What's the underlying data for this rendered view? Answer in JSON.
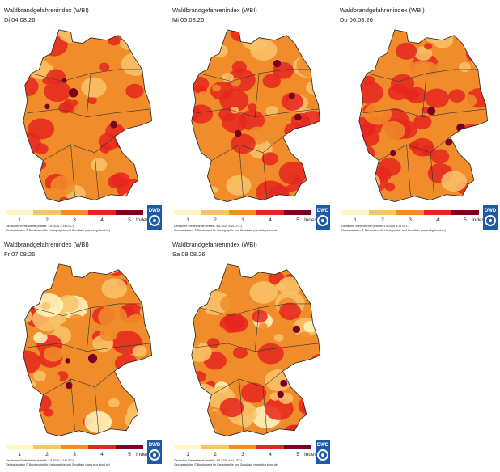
{
  "title": "Waldbrandgefahrenindex (WBI)",
  "panels": [
    {
      "date": "Di 04.08.26"
    },
    {
      "date": "Mi 05.08.26"
    },
    {
      "date": "Do 06.08.26"
    },
    {
      "date": "Fr 07.08.26"
    },
    {
      "date": "Sa 08.08.26"
    }
  ],
  "legend": {
    "labels": [
      "1",
      "2",
      "3",
      "4",
      "5"
    ],
    "unit": "Index",
    "colors": [
      "#fff7c2",
      "#f9c36a",
      "#f08c2a",
      "#e6261e",
      "#7a0022"
    ]
  },
  "credits": [
    "Deutscher Wetterdienst (erstellt: 4.8.2026 4:14 UTC)",
    "Geobasisdaten © Bundesamt für Kartographie und Geodäsie (www.bkg.bund.de)"
  ],
  "logo": "DWD"
}
